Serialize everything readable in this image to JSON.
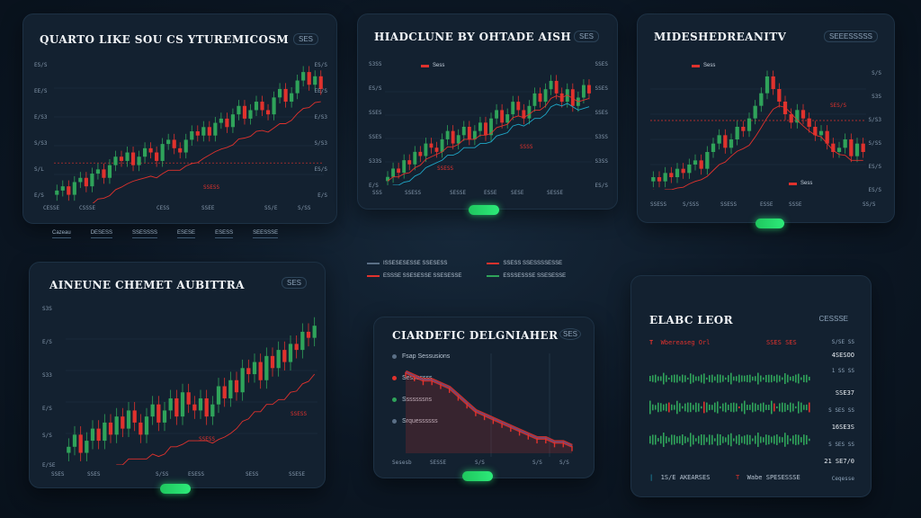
{
  "colors": {
    "up": "#2fa35a",
    "down": "#e0322d",
    "accent": "#2dea79",
    "teal": "#1fa9c9",
    "panel": "#132130"
  },
  "panels": {
    "p1": {
      "title": "QUARTO LIKE SOU CS YTUREMICOSM",
      "badge": "SES",
      "y_left": [
        "ES/S",
        "EE/S",
        "E/S3",
        "S/S3",
        "S/L",
        "E/S"
      ],
      "y_right": [
        "ES/S",
        "EE/S",
        "E/S3",
        "S/S3",
        "ES/S",
        "E/S"
      ],
      "x_labels": [
        "CESSE",
        "CSSSE",
        "CESS",
        "SSEE",
        "SS/E",
        "S/SS"
      ],
      "annotation": "SSESS",
      "tabs": [
        "Cazeau",
        "DESESS",
        "SSESSSS",
        "ESESE",
        "ESESS",
        "SEESSSE"
      ]
    },
    "p2": {
      "title": "HIADCLUNE BY OHTADE AISH",
      "badge": "SES",
      "legend": "Sess",
      "y_left": [
        "S3SS",
        "ES/S",
        "SSES",
        "SSES",
        "S33S",
        "E/S"
      ],
      "y_right": [
        "SSES",
        "SSES",
        "SSES",
        "S3SS",
        "S3SS",
        "ES/S"
      ],
      "x_labels": [
        "SSS",
        "SSESS",
        "SESSE",
        "ESSE",
        "SESE",
        "SESSE"
      ],
      "annotations": [
        "SSESS",
        "SSSS"
      ]
    },
    "p3": {
      "title": "MIDESHEDREANITV",
      "badge": "SEEESSSSS",
      "legend": "Sess",
      "y_right": [
        "S/S",
        "S3S",
        "S/S3",
        "S/SS",
        "ES/S",
        "ES/S"
      ],
      "x_labels": [
        "SSESS",
        "S/SSS",
        "SSESS",
        "ESSE",
        "SSSE",
        "SS/S"
      ],
      "annotations": [
        "SES/S",
        "Sess"
      ]
    },
    "p4": {
      "title": "AINEUNE CHEMET AUBITTRA",
      "badge": "SES",
      "y_left": [
        "S3S",
        "E/S",
        "S33",
        "E/S",
        "S/S",
        "E/SE"
      ],
      "x_labels": [
        "SSES",
        "SSES",
        "S/SS",
        "ESESS",
        "SESS",
        "SSESE"
      ],
      "annotations": [
        "SSESS",
        "SSESS"
      ]
    },
    "p5": {
      "title": "CIARDEFIC DELGNIAHER",
      "badge": "SES",
      "list": [
        "Fsap Sessusions",
        "Sessussss",
        "Sssssssns",
        "Srquessssss"
      ],
      "x_labels": [
        "Sesesb",
        "SESSE",
        "S/S",
        "S/S",
        "S/S"
      ]
    },
    "p6": {
      "title": "ELABC LEOR",
      "badge": "CESSSE",
      "rows_left": [
        "Wbereaseg Orl",
        "SSES SES"
      ],
      "prices": [
        "S/SE SS",
        "4SESOO",
        "1 SS SS",
        "SSE37",
        "S SES SS",
        "16SE3S",
        "S SES SS",
        "21 SE7/0"
      ],
      "footer": [
        "1S/E AKEARSES",
        "Wabe SPESESSSE",
        "Ceqesse"
      ]
    }
  },
  "center_legend": [
    {
      "label": "ISSESESESSE SSESESS",
      "color": "#5a6f86"
    },
    {
      "label": "SSESS SSESSSSESSE",
      "color": "#e0322d"
    },
    {
      "label": "ESSSE SSESESSE SSESESSE",
      "color": "#e0322d"
    },
    {
      "label": "ESSSESSSE SSESESSE",
      "color": "#2fa35a"
    }
  ],
  "chart_data": [
    {
      "type": "candlestick",
      "title": "QUARTO LIKE SOU CS YTUREMICOSM",
      "series": [
        {
          "name": "price",
          "values": [
            3,
            4,
            2,
            5,
            6,
            4,
            7,
            8,
            6,
            9,
            11,
            10,
            12,
            9,
            11,
            13,
            12,
            10,
            14,
            15,
            13,
            12,
            15,
            17,
            16,
            18,
            16,
            19,
            20,
            18,
            21,
            23,
            20,
            22,
            24,
            22,
            21,
            25,
            27,
            24,
            26,
            29,
            31,
            28,
            30,
            27
          ]
        }
      ]
    },
    {
      "type": "candlestick",
      "title": "HIADCLUNE BY OHTADE AISH",
      "series": [
        {
          "name": "Sess",
          "values": [
            4,
            6,
            5,
            8,
            7,
            10,
            9,
            12,
            11,
            10,
            13,
            15,
            12,
            14,
            16,
            13,
            15,
            17,
            14,
            18,
            20,
            17,
            19,
            22,
            20,
            18,
            21,
            24,
            22,
            25,
            27,
            24,
            22,
            25,
            21,
            23,
            26,
            24
          ]
        }
      ]
    },
    {
      "type": "candlestick",
      "title": "MIDESHEDREANITV",
      "series": [
        {
          "name": "Sess",
          "values": [
            4,
            3,
            5,
            4,
            6,
            5,
            7,
            8,
            6,
            10,
            12,
            14,
            11,
            13,
            16,
            15,
            18,
            21,
            24,
            28,
            25,
            22,
            19,
            17,
            20,
            18,
            16,
            14,
            15,
            12,
            10,
            11,
            13,
            9,
            12,
            10
          ]
        }
      ]
    },
    {
      "type": "candlestick",
      "title": "AINEUNE CHEMET AUBITTRA",
      "series": [
        {
          "name": "price",
          "values": [
            8,
            10,
            7,
            9,
            11,
            9,
            12,
            10,
            13,
            11,
            14,
            12,
            10,
            13,
            15,
            12,
            14,
            16,
            13,
            17,
            15,
            14,
            16,
            13,
            15,
            18,
            16,
            19,
            17,
            21,
            20,
            22,
            19,
            23,
            21,
            24,
            22,
            25,
            24,
            27,
            26,
            28
          ]
        }
      ]
    },
    {
      "type": "area",
      "title": "CIARDEFIC DELGNIAHER",
      "series": [
        {
          "name": "depth",
          "values": [
            20,
            19,
            18,
            18,
            17,
            16,
            14,
            12,
            10,
            9,
            8,
            7,
            6,
            5,
            4,
            3,
            3,
            2,
            2,
            1
          ]
        }
      ]
    }
  ]
}
